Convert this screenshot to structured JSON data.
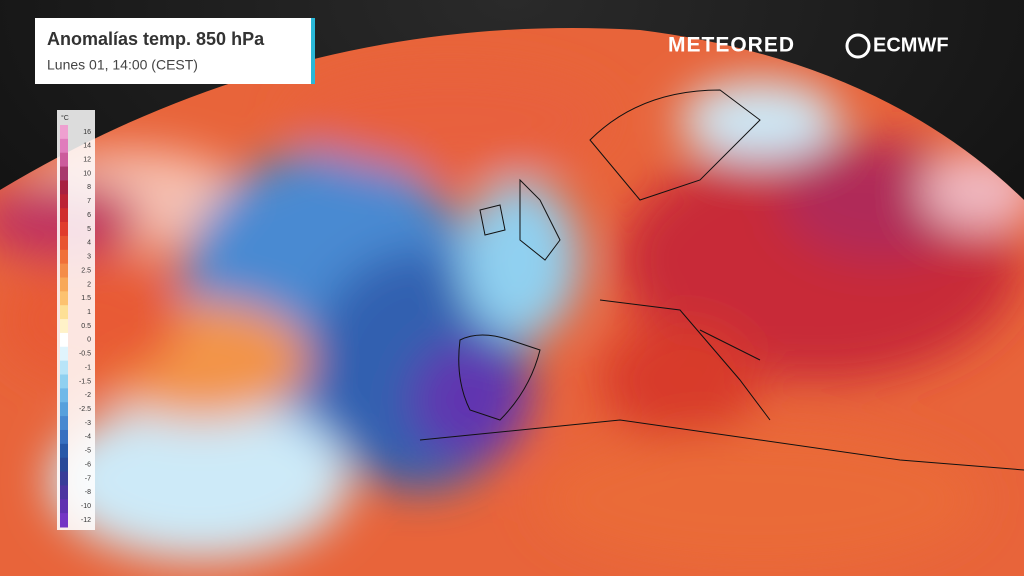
{
  "header": {
    "title": "Anomalías temp. 850 hPa",
    "subtitle": "Lunes 01, 14:00 (CEST)"
  },
  "logos": {
    "brand": "METEORED",
    "partner": "ECMWF"
  },
  "legend": {
    "unit": "°C",
    "items": [
      {
        "value": 16,
        "color": "#eea0d0"
      },
      {
        "value": 14,
        "color": "#e07cbc"
      },
      {
        "value": 12,
        "color": "#cc5c9c"
      },
      {
        "value": 10,
        "color": "#a8386c"
      },
      {
        "value": 8,
        "color": "#a82040"
      },
      {
        "value": 7,
        "color": "#bc2234"
      },
      {
        "value": 6,
        "color": "#d02c2c"
      },
      {
        "value": 5,
        "color": "#e03c2c"
      },
      {
        "value": 4,
        "color": "#e85430"
      },
      {
        "value": 3,
        "color": "#f07038"
      },
      {
        "value": 2.5,
        "color": "#f48c48"
      },
      {
        "value": 2,
        "color": "#f8a858"
      },
      {
        "value": 1.5,
        "color": "#fcc270"
      },
      {
        "value": 1,
        "color": "#fde096"
      },
      {
        "value": 0.5,
        "color": "#fff2c8"
      },
      {
        "value": 0,
        "color": "#ffffff"
      },
      {
        "value": -0.5,
        "color": "#e0f4fc"
      },
      {
        "value": -1,
        "color": "#b8e4f8"
      },
      {
        "value": -1.5,
        "color": "#90d0f0"
      },
      {
        "value": -2,
        "color": "#70b8e8"
      },
      {
        "value": -2.5,
        "color": "#58a0dc"
      },
      {
        "value": -3,
        "color": "#4888d0"
      },
      {
        "value": -4,
        "color": "#3870c0"
      },
      {
        "value": -5,
        "color": "#2858a8"
      },
      {
        "value": -6,
        "color": "#284898"
      },
      {
        "value": -7,
        "color": "#383c98"
      },
      {
        "value": -8,
        "color": "#4c34a0"
      },
      {
        "value": -10,
        "color": "#6030b0"
      },
      {
        "value": -12,
        "color": "#7434c4"
      }
    ]
  }
}
